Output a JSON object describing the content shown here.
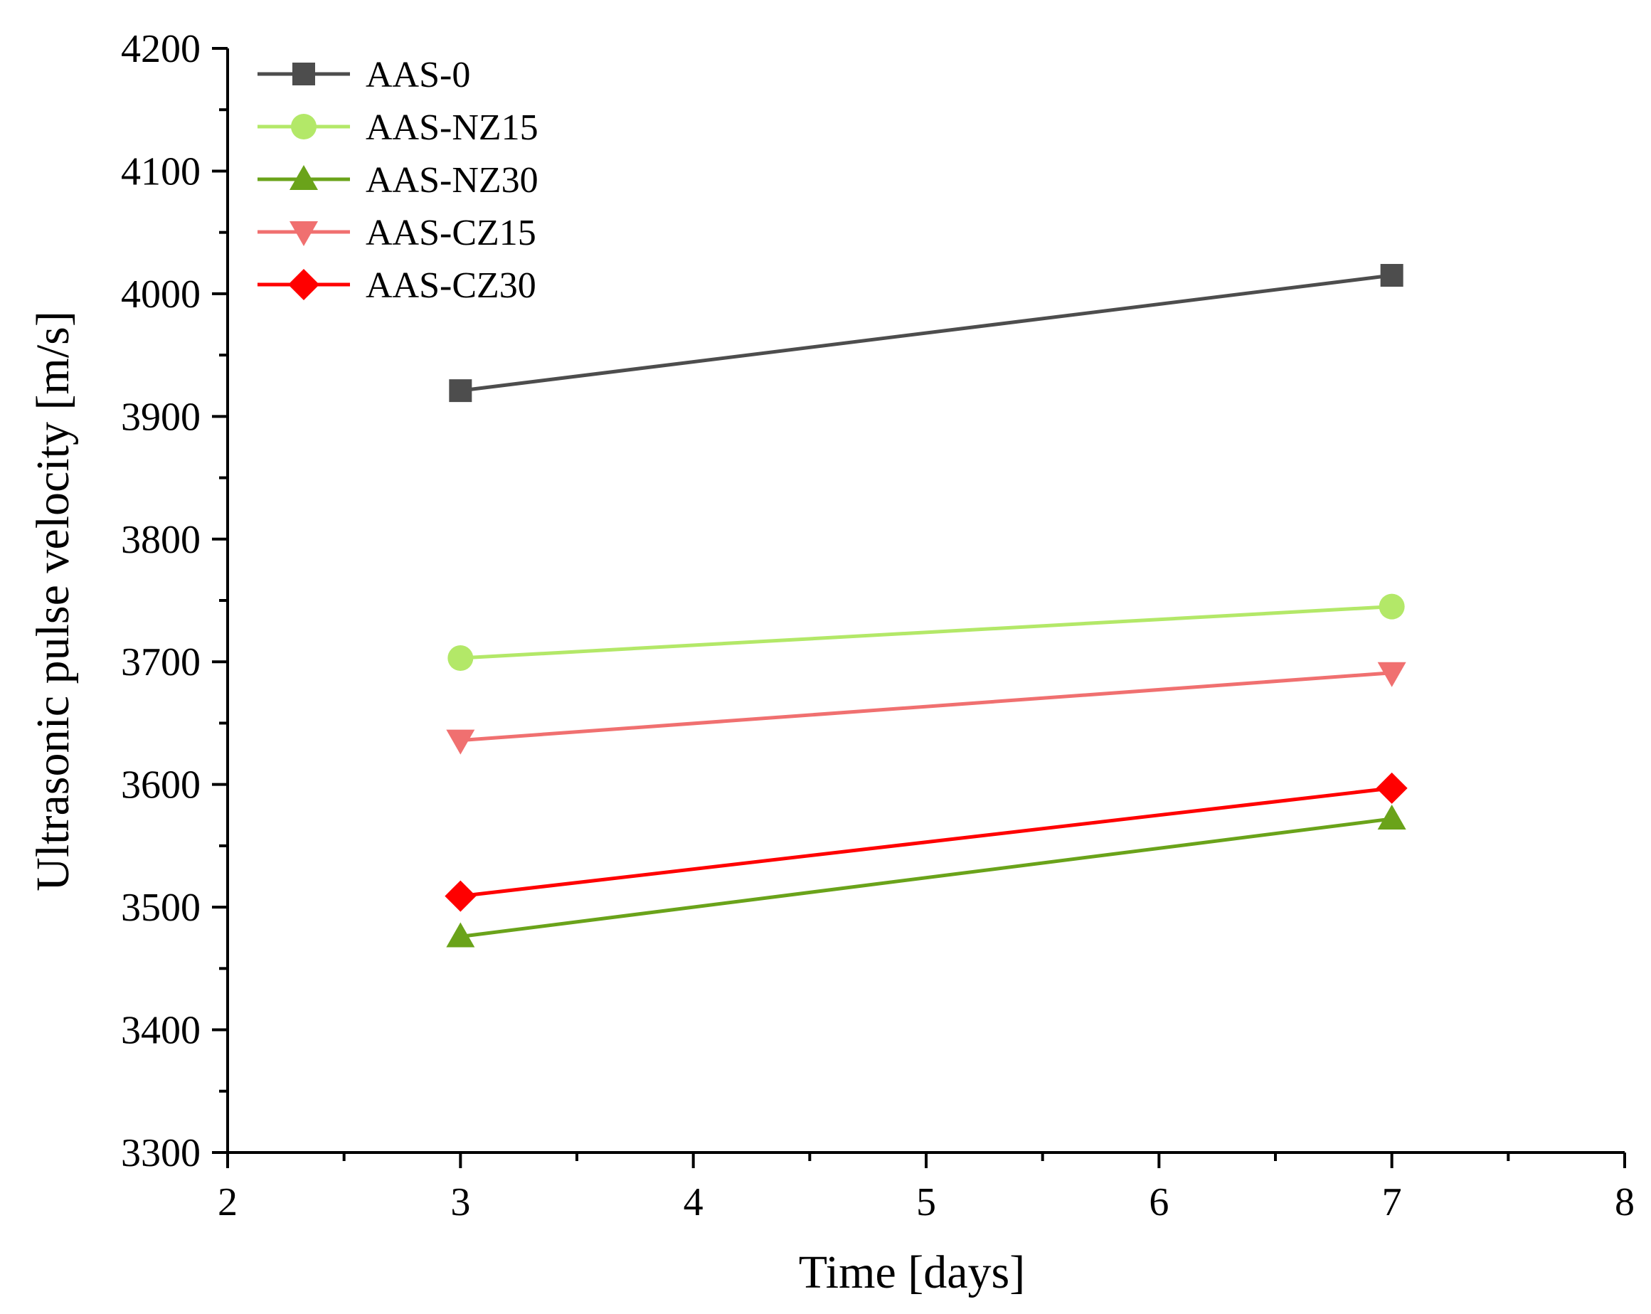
{
  "chart_data": {
    "type": "line",
    "title": "",
    "xlabel": "Time [days]",
    "ylabel": "Ultrasonic pulse velocity [m/s]",
    "xlim": [
      2,
      8
    ],
    "ylim": [
      3300,
      4200
    ],
    "x_major_ticks": [
      2,
      3,
      4,
      5,
      6,
      7,
      8
    ],
    "x_tick_labels": [
      "2",
      "3",
      "4",
      "5",
      "6",
      "7",
      "8"
    ],
    "x_minor_ticks": [
      2.5,
      3.5,
      4.5,
      5.5,
      6.5,
      7.5
    ],
    "y_major_ticks": [
      3300,
      3400,
      3500,
      3600,
      3700,
      3800,
      3900,
      4000,
      4100,
      4200
    ],
    "y_tick_labels": [
      "3300",
      "3400",
      "3500",
      "3600",
      "3700",
      "3800",
      "3900",
      "4000",
      "4100",
      "4200"
    ],
    "y_minor_ticks": [
      3350,
      3450,
      3550,
      3650,
      3750,
      3850,
      3950,
      4050,
      4150
    ],
    "grid": false,
    "legend_position": "top-left",
    "x": [
      3,
      7
    ],
    "series": [
      {
        "name": "AAS-0",
        "values": [
          3921,
          4015
        ],
        "color": "#4d4d4d",
        "marker": "square"
      },
      {
        "name": "AAS-NZ15",
        "values": [
          3703,
          3745
        ],
        "color": "#b3e868",
        "marker": "circle"
      },
      {
        "name": "AAS-NZ30",
        "values": [
          3476,
          3572
        ],
        "color": "#6aa31a",
        "marker": "triangle-up"
      },
      {
        "name": "AAS-CZ15",
        "values": [
          3636,
          3691
        ],
        "color": "#f07070",
        "marker": "triangle-down"
      },
      {
        "name": "AAS-CZ30",
        "values": [
          3509,
          3597
        ],
        "color": "#ff0000",
        "marker": "diamond"
      }
    ]
  }
}
